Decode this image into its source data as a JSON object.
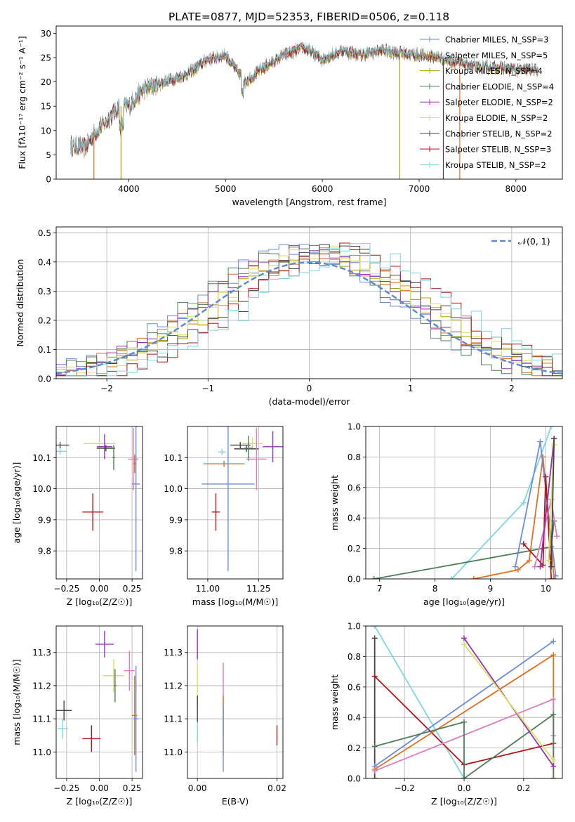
{
  "figure": {
    "title": "PLATE=0877, MJD=52353, FIBERID=0506, z=0.118"
  },
  "chart_data": [
    {
      "id": "spectrum",
      "type": "line",
      "title": "PLATE=0877, MJD=52353, FIBERID=0506, z=0.118",
      "xlabel": "wavelength [Angstrom, rest frame]",
      "ylabel": "Flux [fλ10⁻¹⁷ erg cm⁻² s⁻¹ A⁻¹]",
      "xlim": [
        3250,
        8480
      ],
      "ylim": [
        0,
        31.5
      ],
      "xticks": [
        4000,
        5000,
        6000,
        7000,
        8000
      ],
      "yticks": [
        0,
        5,
        10,
        15,
        20,
        25,
        30
      ],
      "grid": false,
      "legend_position": "right",
      "data_range": [
        3400,
        8230
      ],
      "continuum_knots": {
        "x": [
          3400,
          3550,
          3650,
          3750,
          3900,
          4000,
          4150,
          4300,
          4450,
          4600,
          4800,
          5000,
          5200,
          5400,
          5600,
          5800,
          5900,
          6000,
          6200,
          6400,
          6600,
          6800,
          7000,
          7200,
          7400,
          7600,
          7800,
          8000,
          8230
        ],
        "y": [
          6.8,
          6.5,
          9.5,
          11.5,
          15.0,
          15.0,
          18.5,
          19.5,
          20.5,
          21.5,
          24.5,
          25.5,
          20.0,
          23.0,
          25.5,
          27.0,
          26.0,
          24.5,
          26.5,
          25.5,
          26.5,
          26.0,
          25.5,
          25.0,
          24.0,
          23.0,
          23.0,
          22.5,
          22.5
        ]
      },
      "series": [
        {
          "name": "Chabrier MILES, N_SSP=3",
          "color": "#6a8ddd"
        },
        {
          "name": "Salpeter MILES, N_SSP=5",
          "color": "#e0701f"
        },
        {
          "name": "Kroupa MILES, N_SSP=4",
          "color": "#a8a800"
        },
        {
          "name": "Chabrier ELODIE, N_SSP=4",
          "color": "#4e7d59"
        },
        {
          "name": "Salpeter ELODIE, N_SSP=2",
          "color": "#9a2fb5"
        },
        {
          "name": "Kroupa ELODIE, N_SSP=2",
          "color": "#d6e35a"
        },
        {
          "name": "Chabrier STELIB, N_SSP=2",
          "color": "#444444"
        },
        {
          "name": "Salpeter STELIB, N_SSP=3",
          "color": "#b41515"
        },
        {
          "name": "Kroupa STELIB, N_SSP=2",
          "color": "#7fd6e0"
        }
      ]
    },
    {
      "id": "residuals",
      "type": "line",
      "xlabel": "(data-model)/error",
      "ylabel": "Normed distribution",
      "xlim": [
        -2.5,
        2.5
      ],
      "ylim": [
        0,
        0.52
      ],
      "xticks": [
        -2,
        -1,
        0,
        1,
        2
      ],
      "yticks": [
        0.0,
        0.1,
        0.2,
        0.3,
        0.4,
        0.5
      ],
      "grid": true,
      "legend_position": "top-right",
      "legend_label": "𝒩(0, 1)",
      "gaussian": {
        "mu": 0,
        "sigma": 1,
        "color": "#5b8ad6"
      },
      "bins": 50
    },
    {
      "id": "age_vs_Z",
      "type": "scatter",
      "xlabel": "Z [log₁₀(Z/Z☉)]",
      "ylabel": "age  [log₁₀(age/yr)]",
      "xlim": [
        -0.33,
        0.33
      ],
      "ylim": [
        9.71,
        10.2
      ],
      "xticks": [
        -0.25,
        0.0,
        0.25
      ],
      "yticks": [
        9.8,
        9.9,
        10.0,
        10.1
      ],
      "grid": true,
      "points": [
        {
          "x": -0.3,
          "y": 10.14,
          "xerr": 0.07,
          "yerr": 0.01,
          "color": "#444444"
        },
        {
          "x": -0.3,
          "y": 10.12,
          "xerr": 0.05,
          "yerr": 0.01,
          "color": "#7fd6e0"
        },
        {
          "x": 0.0,
          "y": 10.145,
          "xerr": 0.12,
          "yerr": 0.01,
          "color": "#d6e35a"
        },
        {
          "x": 0.04,
          "y": 10.135,
          "xerr": 0.06,
          "yerr": 0.04,
          "color": "#9a2fb5"
        },
        {
          "x": 0.05,
          "y": 10.13,
          "xerr": 0.07,
          "yerr": 0.01,
          "color": "#444444"
        },
        {
          "x": 0.11,
          "y": 10.1,
          "xerr": 0.01,
          "yerr": 0.04,
          "color": "#4e7d59"
        },
        {
          "x": -0.05,
          "y": 9.925,
          "xerr": 0.08,
          "yerr": 0.06,
          "color": "#b41515"
        },
        {
          "x": 0.26,
          "y": 10.095,
          "xerr": 0.04,
          "yerr": 0.1,
          "color": "#e07cb6"
        },
        {
          "x": 0.27,
          "y": 10.08,
          "xerr": 0.01,
          "yerr": 0.03,
          "color": "#e0701f"
        },
        {
          "x": 0.28,
          "y": 10.015,
          "xerr": 0.03,
          "yerr": 0.28,
          "color": "#6a8ddd"
        }
      ]
    },
    {
      "id": "age_vs_mass",
      "type": "scatter",
      "xlabel": "mass [log₁₀(M/M☉)]",
      "ylabel": "",
      "xlim": [
        10.9,
        11.37
      ],
      "ylim": [
        9.71,
        10.2
      ],
      "xticks": [
        11.0,
        11.25
      ],
      "yticks": [
        9.8,
        9.9,
        10.0,
        10.1
      ],
      "grid": true,
      "points": [
        {
          "x": 11.16,
          "y": 10.14,
          "xerr": 0.05,
          "yerr": 0.01,
          "color": "#444444"
        },
        {
          "x": 11.22,
          "y": 10.145,
          "xerr": 0.05,
          "yerr": 0.02,
          "color": "#d6e35a"
        },
        {
          "x": 11.32,
          "y": 10.135,
          "xerr": 0.05,
          "yerr": 0.05,
          "color": "#9a2fb5"
        },
        {
          "x": 11.19,
          "y": 10.128,
          "xerr": 0.06,
          "yerr": 0.01,
          "color": "#444444"
        },
        {
          "x": 11.2,
          "y": 10.13,
          "xerr": 0.02,
          "yerr": 0.04,
          "color": "#4e7d59"
        },
        {
          "x": 11.07,
          "y": 10.118,
          "xerr": 0.02,
          "yerr": 0.01,
          "color": "#7fd6e0"
        },
        {
          "x": 11.08,
          "y": 10.08,
          "xerr": 0.1,
          "yerr": 0.01,
          "color": "#e0701f"
        },
        {
          "x": 11.24,
          "y": 10.095,
          "xerr": 0.05,
          "yerr": 0.1,
          "color": "#e07cb6"
        },
        {
          "x": 11.04,
          "y": 9.925,
          "xerr": 0.02,
          "yerr": 0.06,
          "color": "#b41515"
        },
        {
          "x": 11.1,
          "y": 10.015,
          "xerr": 0.13,
          "yerr": 0.28,
          "color": "#6a8ddd"
        }
      ]
    },
    {
      "id": "massweight_vs_age",
      "type": "line",
      "xlabel": "age  [log₁₀(age/yr)]",
      "ylabel": "mass weight",
      "xlim": [
        6.75,
        10.3
      ],
      "ylim": [
        0,
        1.0
      ],
      "xticks": [
        7,
        8,
        9,
        10
      ],
      "yticks": [
        0.0,
        0.2,
        0.4,
        0.6,
        0.8,
        1.0
      ],
      "grid": true,
      "series": [
        {
          "color": "#7fd6e0",
          "x": [
            8.3,
            9.6,
            10.1
          ],
          "y": [
            0.0,
            0.5,
            1.0
          ]
        },
        {
          "color": "#4e7d59",
          "x": [
            6.9,
            10.1,
            10.15
          ],
          "y": [
            0.0,
            0.21,
            0.38
          ]
        },
        {
          "color": "#e0701f",
          "x": [
            8.7,
            9.5,
            9.7,
            9.95,
            10.15
          ],
          "y": [
            0.0,
            0.06,
            0.12,
            0.8,
            0.0
          ]
        },
        {
          "color": "#6a8ddd",
          "x": [
            9.45,
            9.9,
            10.18
          ],
          "y": [
            0.08,
            0.9,
            0.02
          ]
        },
        {
          "color": "#b41515",
          "x": [
            9.6,
            9.95,
            10.0,
            10.1
          ],
          "y": [
            0.23,
            0.09,
            0.67,
            0.0
          ]
        },
        {
          "color": "#e07cb6",
          "x": [
            9.8,
            10.1,
            10.2
          ],
          "y": [
            0.08,
            0.52,
            0.28
          ]
        },
        {
          "color": "#9a2fb5",
          "x": [
            9.9,
            10.15
          ],
          "y": [
            0.08,
            0.92
          ]
        },
        {
          "color": "#d6e35a",
          "x": [
            10.05,
            10.15
          ],
          "y": [
            0.12,
            0.88
          ]
        },
        {
          "color": "#444444",
          "x": [
            10.1,
            10.15
          ],
          "y": [
            0.08,
            0.92
          ]
        }
      ]
    },
    {
      "id": "mass_vs_Z",
      "type": "scatter",
      "xlabel": "Z [log₁₀(Z/Z☉)]",
      "ylabel": "mass [log₁₀(M/M☉)]",
      "xlim": [
        -0.33,
        0.33
      ],
      "ylim": [
        10.92,
        11.38
      ],
      "xticks": [
        -0.25,
        0.0,
        0.25
      ],
      "yticks": [
        11.0,
        11.1,
        11.2,
        11.3
      ],
      "grid": true,
      "points": [
        {
          "x": 0.04,
          "y": 11.325,
          "xerr": 0.07,
          "yerr": 0.04,
          "color": "#9a2fb5"
        },
        {
          "x": 0.23,
          "y": 11.245,
          "xerr": 0.04,
          "yerr": 0.06,
          "color": "#e07cb6"
        },
        {
          "x": 0.11,
          "y": 11.23,
          "xerr": 0.08,
          "yerr": 0.05,
          "color": "#d6e35a"
        },
        {
          "x": 0.12,
          "y": 11.2,
          "xerr": 0.01,
          "yerr": 0.05,
          "color": "#4e7d59"
        },
        {
          "x": -0.27,
          "y": 11.125,
          "xerr": 0.06,
          "yerr": 0.03,
          "color": "#444444"
        },
        {
          "x": 0.27,
          "y": 11.11,
          "xerr": 0.02,
          "yerr": 0.12,
          "color": "#e0701f"
        },
        {
          "x": 0.28,
          "y": 11.1,
          "xerr": 0.02,
          "yerr": 0.16,
          "color": "#6a8ddd"
        },
        {
          "x": -0.28,
          "y": 11.07,
          "xerr": 0.04,
          "yerr": 0.03,
          "color": "#7fd6e0"
        },
        {
          "x": -0.06,
          "y": 11.04,
          "xerr": 0.07,
          "yerr": 0.04,
          "color": "#b41515"
        }
      ]
    },
    {
      "id": "mass_vs_ebv",
      "type": "scatter",
      "xlabel": "E(B-V)",
      "ylabel": "",
      "xlim": [
        -0.0025,
        0.0215
      ],
      "ylim": [
        10.92,
        11.38
      ],
      "xticks": [
        0.0,
        0.02
      ],
      "yticks": [
        11.0,
        11.1,
        11.2,
        11.3
      ],
      "grid": true,
      "points": [
        {
          "x": 0.0,
          "y": 11.325,
          "xerr": 0,
          "yerr": 0.045,
          "color": "#9a2fb5"
        },
        {
          "x": 0.0,
          "y": 11.2,
          "xerr": 0,
          "yerr": 0.06,
          "color": "#d6e35a"
        },
        {
          "x": 0.0,
          "y": 11.13,
          "xerr": 0,
          "yerr": 0.04,
          "color": "#444444"
        },
        {
          "x": 0.0,
          "y": 11.06,
          "xerr": 0,
          "yerr": 0.03,
          "color": "#7fd6e0"
        },
        {
          "x": 0.0065,
          "y": 11.16,
          "xerr": 0,
          "yerr": 0.11,
          "color": "#e07cb6"
        },
        {
          "x": 0.0065,
          "y": 11.08,
          "xerr": 0,
          "yerr": 0.09,
          "color": "#e0701f"
        },
        {
          "x": 0.0065,
          "y": 11.04,
          "xerr": 0,
          "yerr": 0.1,
          "color": "#6a8ddd"
        },
        {
          "x": 0.02,
          "y": 11.05,
          "xerr": 0,
          "yerr": 0.03,
          "color": "#b41515"
        }
      ]
    },
    {
      "id": "massweight_vs_Z",
      "type": "line",
      "xlabel": "Z [log₁₀(Z/Z☉)]",
      "ylabel": "mass weight",
      "xlim": [
        -0.33,
        0.33
      ],
      "ylim": [
        0,
        1.0
      ],
      "xticks": [
        -0.2,
        0.0,
        0.2
      ],
      "yticks": [
        0.0,
        0.2,
        0.4,
        0.6,
        0.8,
        1.0
      ],
      "grid": true,
      "series": [
        {
          "color": "#7fd6e0",
          "x": [
            -0.3,
            0.0
          ],
          "y": [
            1.0,
            0.0
          ]
        },
        {
          "color": "#444444",
          "x": [
            -0.3,
            -0.3
          ],
          "y": [
            0.0,
            0.92
          ]
        },
        {
          "color": "#b41515",
          "x": [
            -0.3,
            0.0,
            0.3
          ],
          "y": [
            0.67,
            0.09,
            0.23
          ]
        },
        {
          "color": "#6a8ddd",
          "x": [
            -0.3,
            0.3
          ],
          "y": [
            0.08,
            0.9
          ]
        },
        {
          "color": "#e0701f",
          "x": [
            -0.3,
            0.3,
            0.3
          ],
          "y": [
            0.06,
            0.81,
            0.0
          ]
        },
        {
          "color": "#e07cb6",
          "x": [
            -0.3,
            0.3,
            0.3
          ],
          "y": [
            0.05,
            0.52,
            0.28
          ]
        },
        {
          "color": "#4e7d59",
          "x": [
            -0.3,
            0.0,
            0.0,
            0.3,
            0.3
          ],
          "y": [
            0.21,
            0.37,
            0.0,
            0.42,
            0.0
          ]
        },
        {
          "color": "#9a2fb5",
          "x": [
            0.0,
            0.3
          ],
          "y": [
            0.92,
            0.08
          ]
        },
        {
          "color": "#d6e35a",
          "x": [
            0.0,
            0.3
          ],
          "y": [
            0.88,
            0.12
          ]
        }
      ]
    }
  ]
}
